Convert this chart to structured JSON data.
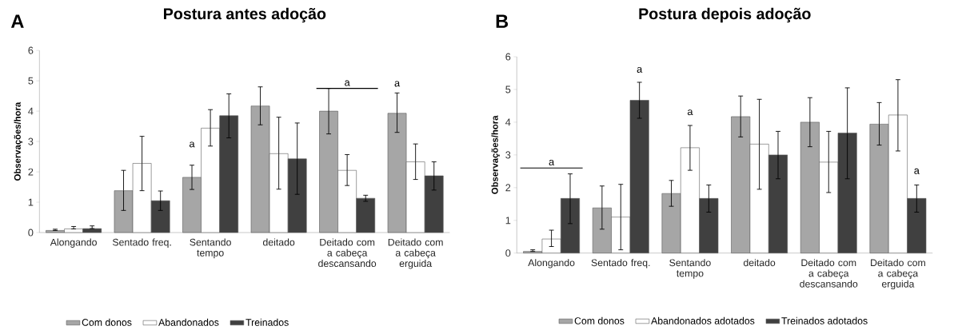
{
  "chart_data": [
    {
      "type": "bar",
      "title": "Postura antes adoção",
      "ylabel": "Observações/hora",
      "categories": [
        "Alongando",
        "Sentado freq.",
        "Sentando tempo",
        "deitado",
        "Deitado com a cabeça descansando",
        "Deitado com a cabeça erguida"
      ],
      "series": [
        {
          "name": "Com donos",
          "color": "#a6a6a6",
          "values": [
            0.07,
            1.38,
            1.82,
            4.17,
            4.0,
            3.93
          ],
          "errors": [
            [
              0.07,
              0.11
            ],
            [
              0.73,
              2.05
            ],
            [
              1.42,
              2.22
            ],
            [
              3.55,
              4.8
            ],
            [
              3.25,
              4.75
            ],
            [
              3.3,
              4.6
            ]
          ]
        },
        {
          "name": "Abandonados",
          "color": "#ffffff",
          "values": [
            0.12,
            2.28,
            3.44,
            2.6,
            2.05,
            2.33
          ],
          "errors": [
            [
              0.12,
              0.2
            ],
            [
              1.38,
              3.17
            ],
            [
              2.85,
              4.05
            ],
            [
              1.43,
              3.8
            ],
            [
              1.55,
              2.57
            ],
            [
              1.75,
              2.92
            ]
          ]
        },
        {
          "name": "Treinados",
          "color": "#404040",
          "values": [
            0.13,
            1.05,
            3.85,
            2.43,
            1.13,
            1.87
          ],
          "errors": [
            [
              0.13,
              0.22
            ],
            [
              0.73,
              1.37
            ],
            [
              3.12,
              4.57
            ],
            [
              1.26,
              3.61
            ],
            [
              1.03,
              1.23
            ],
            [
              1.4,
              2.33
            ]
          ]
        }
      ],
      "ylim": [
        0,
        6
      ],
      "yticks": [
        0,
        1,
        2,
        3,
        4,
        5,
        6
      ],
      "legend": "bottom",
      "annotations": [
        "A",
        "a",
        "a",
        "a"
      ]
    },
    {
      "type": "bar",
      "title": "Postura depois adoção",
      "ylabel": "Observações/hora",
      "categories": [
        "Alongando",
        "Sentado freq.",
        "Sentando tempo",
        "deitado",
        "Deitado com a cabeça descansando",
        "Deitado com a cabeça erguida"
      ],
      "series": [
        {
          "name": "Com donos",
          "color": "#a6a6a6",
          "values": [
            0.05,
            1.38,
            1.82,
            4.17,
            4.0,
            3.94
          ],
          "errors": [
            [
              0.05,
              0.1
            ],
            [
              0.73,
              2.05
            ],
            [
              1.43,
              2.22
            ],
            [
              3.55,
              4.8
            ],
            [
              3.25,
              4.75
            ],
            [
              3.3,
              4.6
            ]
          ]
        },
        {
          "name": "Abandonados adotados",
          "color": "#ffffff",
          "values": [
            0.43,
            1.1,
            3.22,
            3.33,
            2.78,
            4.22
          ],
          "errors": [
            [
              0.2,
              0.7
            ],
            [
              0.1,
              2.1
            ],
            [
              2.53,
              3.9
            ],
            [
              1.95,
              4.7
            ],
            [
              1.85,
              3.72
            ],
            [
              3.12,
              5.3
            ]
          ]
        },
        {
          "name": "Treinados adotados",
          "color": "#404040",
          "values": [
            1.67,
            4.67,
            1.67,
            3.0,
            3.67,
            1.67
          ],
          "errors": [
            [
              0.9,
              2.42
            ],
            [
              4.12,
              5.22
            ],
            [
              1.25,
              2.08
            ],
            [
              2.27,
              3.72
            ],
            [
              2.27,
              5.05
            ],
            [
              1.25,
              2.08
            ]
          ]
        }
      ],
      "ylim": [
        0,
        6
      ],
      "yticks": [
        0,
        1,
        2,
        3,
        4,
        5,
        6
      ],
      "legend": "bottom",
      "annotations": [
        "B",
        "a",
        "a",
        "a",
        "a"
      ]
    }
  ]
}
